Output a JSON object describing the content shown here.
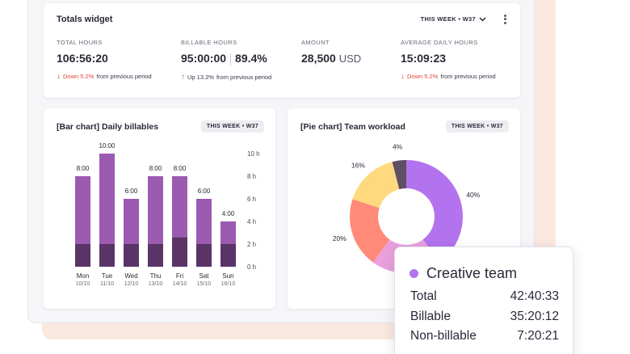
{
  "totals": {
    "title": "Totals widget",
    "period": "THIS WEEK • W37",
    "metrics": [
      {
        "label": "TOTAL HOURS",
        "value": "106:56:20",
        "change_pct": "Down 5.2%",
        "change_text": "from previous period"
      },
      {
        "label": "BILLABLE HOURS",
        "value": "95:00:00",
        "secondary": "89.4%",
        "change_pct": "Up 13.2%",
        "change_text": "from previous period"
      },
      {
        "label": "AMOUNT",
        "value": "28,500",
        "unit": "USD"
      },
      {
        "label": "AVERAGE DAILY HOURS",
        "value": "15:09:23",
        "change_pct": "Down 5.2%",
        "change_text": "from previous period"
      }
    ]
  },
  "bar_widget": {
    "title": "[Bar chart] Daily billables",
    "period": "THIS WEEK • W37"
  },
  "pie_widget": {
    "title": "[Pie chart] Team workload",
    "period": "THIS WEEK • W37"
  },
  "chart_data": [
    {
      "type": "bar",
      "categories": [
        "Mon",
        "Tue",
        "Wed",
        "Thu",
        "Fri",
        "Sat",
        "Sun"
      ],
      "dates": [
        "10/10",
        "11/10",
        "12/10",
        "13/10",
        "14/10",
        "15/10",
        "16/10"
      ],
      "series": [
        {
          "values": [
            2,
            2,
            2,
            2,
            2.6,
            2,
            2
          ],
          "color": "#5b3467"
        },
        {
          "values": [
            6,
            8,
            4,
            6,
            5.4,
            4,
            2
          ],
          "color": "#9b5bb0"
        }
      ],
      "data_labels": [
        "8:00",
        "10:00",
        "6:00",
        "8:00",
        "8:00",
        "6:00",
        "4:00"
      ],
      "yticks": [
        "0 h",
        "2 h",
        "4 h",
        "6 h",
        "8 h",
        "10 h"
      ],
      "ylim": [
        0,
        10
      ]
    },
    {
      "type": "pie",
      "labels": [
        "",
        "",
        "",
        "",
        ""
      ],
      "values": [
        40,
        20,
        20,
        16,
        4
      ],
      "value_labels": [
        "40%",
        "",
        "20%",
        "16%",
        "4%"
      ],
      "colors": [
        "#b373ee",
        "#e9a0dd",
        "#ff8a78",
        "#ffd97e",
        "#5f4f64"
      ]
    }
  ],
  "popup": {
    "title": "Creative team",
    "color": "#b373ee",
    "rows": [
      {
        "label": "Total",
        "value": "42:40:33"
      },
      {
        "label": "Billable",
        "value": "35:20:12"
      },
      {
        "label": "Non-billable",
        "value": "7:20:21"
      }
    ]
  }
}
